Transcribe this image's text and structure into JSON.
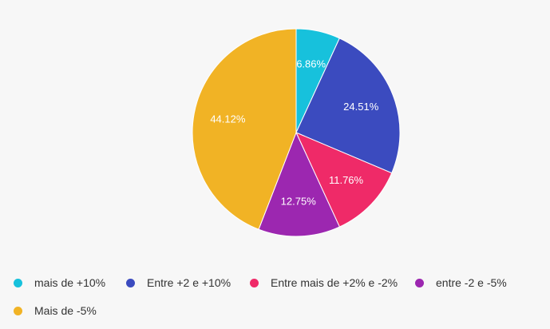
{
  "chart_data": {
    "type": "pie",
    "categories": [
      "mais de +10%",
      "Entre +2 e +10%",
      "Entre mais de +2% e -2%",
      "entre -2 e -5%",
      "Mais de -5%"
    ],
    "values": [
      6.86,
      24.51,
      11.76,
      12.75,
      44.12
    ],
    "labels": [
      "6.86%",
      "24.51%",
      "11.76%",
      "12.75%",
      "44.12%"
    ],
    "colors": [
      "#17c1dc",
      "#3b4bbf",
      "#ef2a68",
      "#9c27b0",
      "#f1b325"
    ],
    "legend_position": "bottom-left"
  },
  "legend": {
    "items": [
      {
        "label": "mais de +10%",
        "color": "#17c1dc"
      },
      {
        "label": "Entre +2 e +10%",
        "color": "#3b4bbf"
      },
      {
        "label": "Entre mais de +2% e -2%",
        "color": "#ef2a68"
      },
      {
        "label": "entre -2 e -5%",
        "color": "#9c27b0"
      },
      {
        "label": "Mais de -5%",
        "color": "#f1b325"
      }
    ]
  }
}
